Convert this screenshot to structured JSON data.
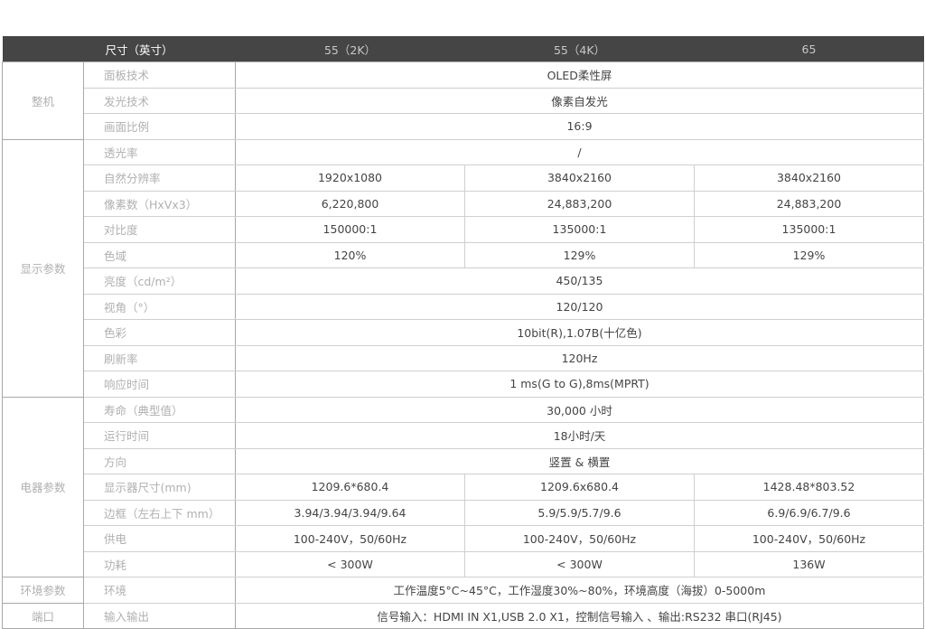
{
  "header": {
    "label": "尺寸（英寸）",
    "columns": [
      "55（2K）",
      "55（4K）",
      "65"
    ]
  },
  "groups": [
    {
      "name": "整机",
      "rows": [
        {
          "label": "面板技术",
          "values": [
            "OLED柔性屏"
          ]
        },
        {
          "label": "发光技术",
          "values": [
            "像素自发光"
          ]
        },
        {
          "label": "画面比例",
          "values": [
            "16:9"
          ]
        }
      ]
    },
    {
      "name": "显示参数",
      "rows": [
        {
          "label": "透光率",
          "values": [
            "/"
          ]
        },
        {
          "label": "自然分辨率",
          "values": [
            "1920x1080",
            "3840x2160",
            "3840x2160"
          ]
        },
        {
          "label": "像素数（HxVx3）",
          "values": [
            "6,220,800",
            "24,883,200",
            "24,883,200"
          ]
        },
        {
          "label": "对比度",
          "values": [
            "150000:1",
            "135000:1",
            "135000:1"
          ]
        },
        {
          "label": "色域",
          "values": [
            "120%",
            "129%",
            "129%"
          ]
        },
        {
          "label": "亮度（cd/m²）",
          "values": [
            "450/135"
          ]
        },
        {
          "label": "视角（°）",
          "values": [
            "120/120"
          ]
        },
        {
          "label": "色彩",
          "values": [
            "10bit(R),1.07B(十亿色)"
          ]
        },
        {
          "label": "刷新率",
          "values": [
            "120Hz"
          ]
        },
        {
          "label": "响应时间",
          "values": [
            "1 ms(G to G),8ms(MPRT)"
          ]
        }
      ]
    },
    {
      "name": "电器参数",
      "rows": [
        {
          "label": "寿命（典型值）",
          "values": [
            "30,000 小时"
          ]
        },
        {
          "label": "运行时间",
          "values": [
            "18小时/天"
          ]
        },
        {
          "label": "方向",
          "values": [
            "竖置 & 横置"
          ]
        },
        {
          "label": "显示器尺寸(mm)",
          "values": [
            "1209.6*680.4",
            "1209.6x680.4",
            "1428.48*803.52"
          ]
        },
        {
          "label": "边框（左右上下 mm）",
          "values": [
            "3.94/3.94/3.94/9.64",
            "5.9/5.9/5.7/9.6",
            "6.9/6.9/6.7/9.6"
          ]
        },
        {
          "label": "供电",
          "values": [
            "100-240V，50/60Hz",
            "100-240V，50/60Hz",
            "100-240V，50/60Hz"
          ]
        },
        {
          "label": "功耗",
          "values": [
            "< 300W",
            "< 300W",
            "136W"
          ]
        }
      ]
    },
    {
      "name": "环境参数",
      "rows": [
        {
          "label": "环境",
          "values": [
            "工作温度5°C~45°C，工作湿度30%~80%，环境高度（海拔）0-5000m"
          ]
        }
      ]
    },
    {
      "name": "端口",
      "rows": [
        {
          "label": "输入输出",
          "values": [
            "信号输入：HDMI IN X1,USB 2.0 X1，控制信号输入 、输出:RS232 串口(RJ45)"
          ]
        }
      ]
    }
  ]
}
